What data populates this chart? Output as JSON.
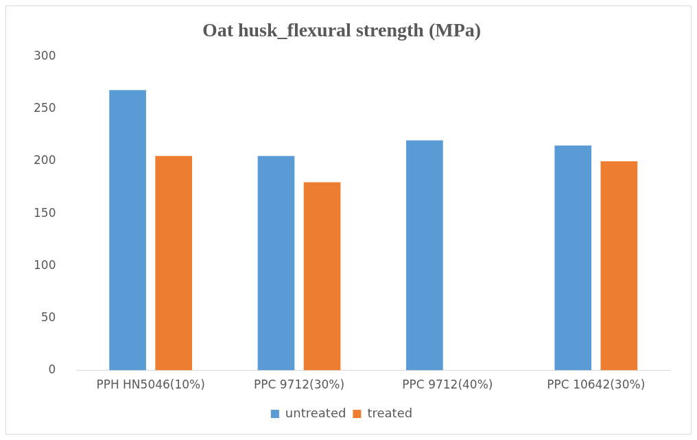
{
  "chart_data": {
    "type": "bar",
    "title": "Oat husk_flexural strength (MPa)",
    "categories": [
      "PPH HN5046(10%)",
      "PPC 9712(30%)",
      "PPC 9712(40%)",
      "PPC 10642(30%)"
    ],
    "series": [
      {
        "name": "untreated",
        "color": "#5b9bd5",
        "values": [
          268,
          205,
          220,
          215
        ]
      },
      {
        "name": "treated",
        "color": "#ed7d31",
        "values": [
          205,
          180,
          null,
          200
        ]
      }
    ],
    "ylim": [
      0,
      300
    ],
    "yticks": [
      0,
      50,
      100,
      150,
      200,
      250,
      300
    ],
    "grid": false,
    "legend": "bottom"
  }
}
